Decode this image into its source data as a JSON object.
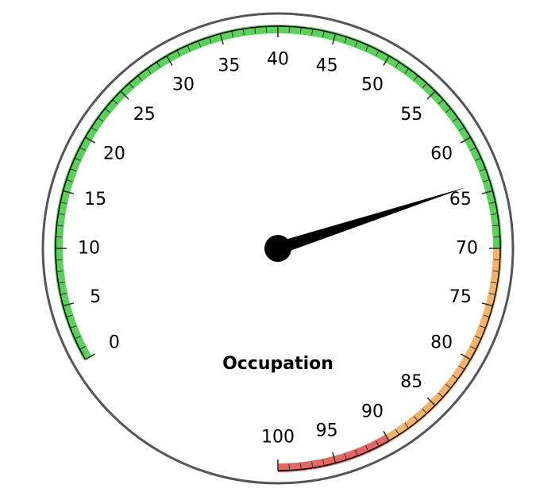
{
  "chart_data": {
    "type": "gauge",
    "title": "Occupation",
    "value": 64,
    "min": 0,
    "max": 100,
    "major_tick_step": 5,
    "minor_tick_step": 1,
    "tick_labels": [
      "0",
      "5",
      "10",
      "15",
      "20",
      "25",
      "30",
      "35",
      "40",
      "45",
      "50",
      "55",
      "60",
      "65",
      "70",
      "75",
      "80",
      "85",
      "90",
      "95",
      "100"
    ],
    "bands": [
      {
        "from": 0,
        "to": 70,
        "color": "#5ccf5c"
      },
      {
        "from": 70,
        "to": 90,
        "color": "#f2b36a"
      },
      {
        "from": 90,
        "to": 100,
        "color": "#e46767"
      }
    ],
    "colors": {
      "outer_ring": "#555555",
      "needle": "#000000",
      "ticks": "#333333"
    }
  }
}
